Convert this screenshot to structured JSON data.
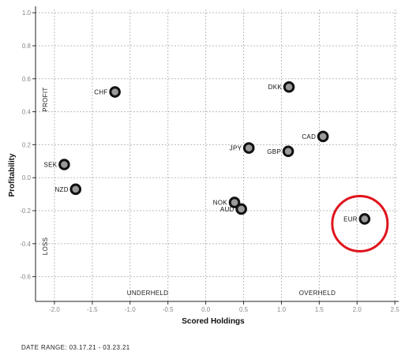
{
  "chart_data": {
    "type": "scatter",
    "title": "",
    "xlabel": "Scored Holdings",
    "ylabel": "Profitability",
    "xlim": [
      -2.25,
      2.55
    ],
    "ylim": [
      -0.75,
      1.02
    ],
    "x_ticks": [
      -2.0,
      -1.5,
      -1.0,
      -0.5,
      0.0,
      0.5,
      1.0,
      1.5,
      2.0,
      2.5
    ],
    "y_ticks": [
      -0.6,
      -0.4,
      -0.2,
      0.0,
      0.2,
      0.4,
      0.6,
      0.8,
      1.0
    ],
    "x_tick_labels": [
      "-2.0",
      "-1.5",
      "-1.0",
      "-0.5",
      "0.0",
      "0.5",
      "1.0",
      "1.5",
      "2.0",
      "2.5"
    ],
    "y_tick_labels": [
      "-0.6",
      "-0.4",
      "-0.2",
      "0.0",
      "0.2",
      "0.4",
      "0.6",
      "0.8",
      "1.0"
    ],
    "grid": true,
    "region_labels": {
      "profit": "PROFIT",
      "loss": "LOSS",
      "underheld": "UNDERHELD",
      "overheld": "OVERHELD"
    },
    "points": [
      {
        "label": "CHF",
        "x": -1.2,
        "y": 0.52
      },
      {
        "label": "DKK",
        "x": 1.1,
        "y": 0.55
      },
      {
        "label": "CAD",
        "x": 1.55,
        "y": 0.25
      },
      {
        "label": "JPY",
        "x": 0.57,
        "y": 0.18
      },
      {
        "label": "GBP",
        "x": 1.09,
        "y": 0.16
      },
      {
        "label": "SEK",
        "x": -1.87,
        "y": 0.08
      },
      {
        "label": "NZD",
        "x": -1.72,
        "y": -0.07
      },
      {
        "label": "NOK",
        "x": 0.38,
        "y": -0.15
      },
      {
        "label": "AUD",
        "x": 0.47,
        "y": -0.19
      },
      {
        "label": "EUR",
        "x": 2.1,
        "y": -0.25
      }
    ],
    "highlight": {
      "label": "EUR",
      "color": "#e0141c"
    }
  },
  "footer": {
    "date_range": "DATE RANGE: 03.17.21 - 03.23.21"
  },
  "colors": {
    "marker_ring": "#111111",
    "marker_fill": "#9a9a9a",
    "grid": "#bbbbbb",
    "highlight": "#e0141c"
  }
}
